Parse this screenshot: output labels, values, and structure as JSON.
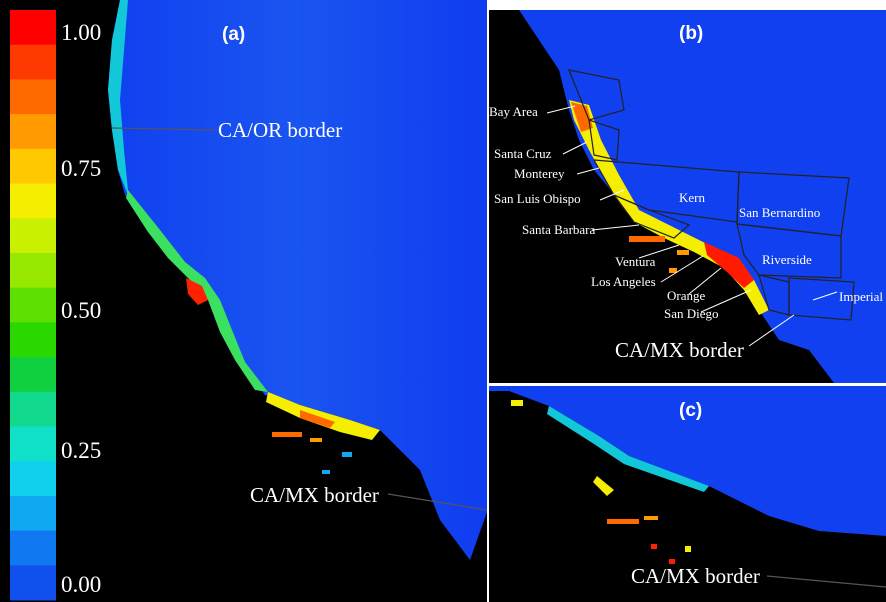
{
  "colorbar": {
    "ticks": [
      "1.00",
      "0.75",
      "0.50",
      "0.25",
      "0.00"
    ],
    "colors": [
      "#fe0000",
      "#fe3a00",
      "#ff6a00",
      "#ff9a00",
      "#ffc800",
      "#f6ee00",
      "#c8f000",
      "#96e800",
      "#5ee000",
      "#2ad800",
      "#10d040",
      "#10d88c",
      "#10e0c8",
      "#10d0ee",
      "#10a8f0",
      "#1078f0",
      "#1050ee"
    ]
  },
  "panels": {
    "a": {
      "label": "(a)",
      "annotations": [
        "CA/OR border",
        "CA/MX border"
      ]
    },
    "b": {
      "label": "(b)",
      "counties": [
        "Bay Area",
        "Santa Cruz",
        "Monterey",
        "San Luis Obispo",
        "Santa Barbara",
        "Ventura",
        "Los Angeles",
        "Orange",
        "San Diego",
        "Kern",
        "San Bernardino",
        "Riverside",
        "Imperial"
      ],
      "border_label": "CA/MX border"
    },
    "c": {
      "label": "(c)",
      "border_label": "CA/MX border"
    }
  },
  "colors": {
    "ocean": "#1040f0",
    "land": "#000000",
    "text": "#ffffff"
  }
}
